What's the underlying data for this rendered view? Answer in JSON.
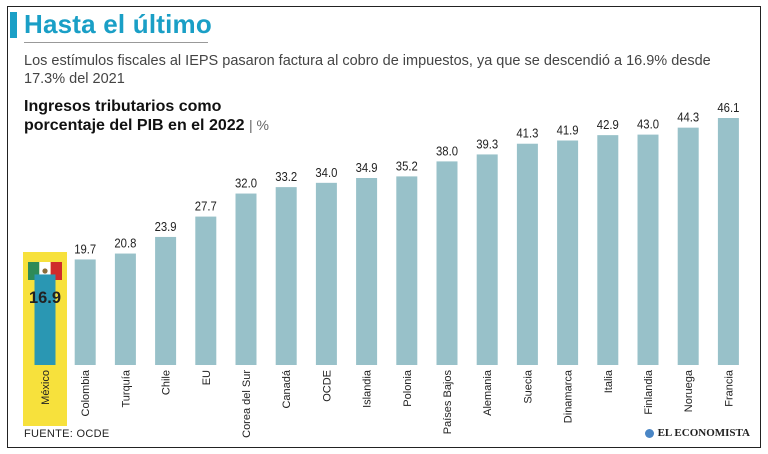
{
  "header": {
    "title": "Hasta el último",
    "subtitle": "Los estímulos fiscales al IEPS pasaron factura al cobro de impuestos, ya que se descendió a 16.9% desde 17.3% del 2021"
  },
  "chart_title": {
    "line1": "Ingresos tributarios como",
    "line2": "porcentaje del PIB en el 2022",
    "unit": "%"
  },
  "chart_data": {
    "type": "bar",
    "title": "Ingresos tributarios como porcentaje del PIB en el 2022",
    "unit": "%",
    "categories": [
      "México",
      "Colombia",
      "Turquía",
      "Chile",
      "EU",
      "Corea del Sur",
      "Canadá",
      "OCDE",
      "Islandia",
      "Polonia",
      "Países Bajos",
      "Alemania",
      "Suecia",
      "Dinamarca",
      "Italia",
      "Finlandia",
      "Noruega",
      "Francia"
    ],
    "values": [
      16.9,
      19.7,
      20.8,
      23.9,
      27.7,
      32.0,
      33.2,
      34.0,
      34.9,
      35.2,
      38.0,
      39.3,
      41.3,
      41.9,
      42.9,
      43.0,
      44.3,
      46.1
    ],
    "value_labels": [
      "16.9",
      "19.7",
      "20.8",
      "23.9",
      "27.7",
      "32.0",
      "33.2",
      "34.0",
      "34.9",
      "35.2",
      "38.0",
      "39.3",
      "41.3",
      "41.9",
      "42.9",
      "43.0",
      "44.3",
      "46.1"
    ],
    "highlight": "México",
    "ylim": [
      0,
      46.1
    ],
    "xlabel": "",
    "ylabel": ""
  },
  "colors": {
    "accent": "#1a9fc6",
    "bar": "#98c1c9",
    "bar_highlight": "#2a97b3",
    "highlight_bg": "#f7e13c",
    "flag_green": "#2e8b57",
    "flag_red": "#cf2b2b"
  },
  "icons": {
    "flag": "mexico-flag-icon",
    "brand": "el-economista-logo-icon"
  },
  "footer": {
    "source": "FUENTE:  OCDE",
    "brand": "EL ECONOMISTA"
  }
}
